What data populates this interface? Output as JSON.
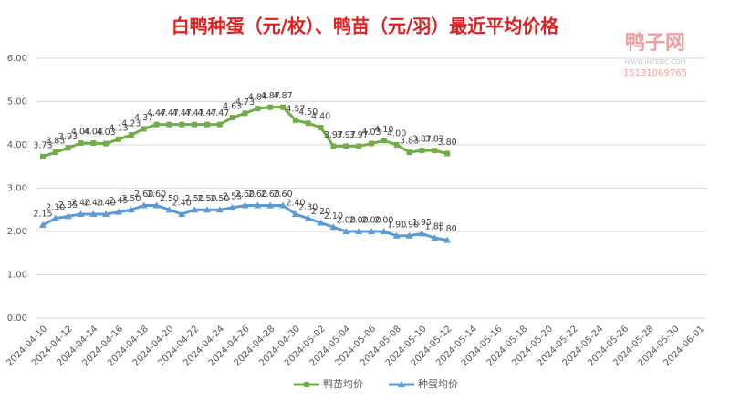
{
  "chart_data": {
    "type": "line",
    "title": "白鸭种蛋（元/枚）、鸭苗（元/羽）最近平均价格",
    "watermark": {
      "name": "鸭子网",
      "site": "WWW.INTEDC.COM",
      "phone": "15131069765"
    },
    "categories": [
      "2024-04-10",
      null,
      "2024-04-12",
      null,
      "2024-04-14",
      null,
      "2024-04-16",
      null,
      "2024-04-18",
      null,
      "2024-04-20",
      null,
      "2024-04-22",
      null,
      "2024-04-24",
      null,
      "2024-04-26",
      null,
      "2024-04-28",
      null,
      "2024-04-30",
      null,
      "2024-05-02",
      null,
      "2024-05-04",
      null,
      "2024-05-06",
      null,
      "2024-05-08",
      null,
      "2024-05-10",
      null,
      "2024-05-12",
      null,
      "2024-05-14",
      null,
      "2024-05-16",
      null,
      "2024-05-18",
      null,
      "2024-05-20",
      null,
      "2024-05-22",
      null,
      "2024-05-24",
      null,
      "2024-05-26",
      null,
      "2024-05-28",
      null,
      "2024-05-30",
      null,
      "2024-06-01"
    ],
    "series": [
      {
        "name": "鸭苗均价",
        "color": "#70ad47",
        "marker": "square",
        "values": [
          3.73,
          3.83,
          3.93,
          4.04,
          4.04,
          4.03,
          4.13,
          4.23,
          4.37,
          4.47,
          4.47,
          4.47,
          4.47,
          4.47,
          4.47,
          4.63,
          4.73,
          4.84,
          4.87,
          4.87,
          4.57,
          4.5,
          4.4,
          3.97,
          3.97,
          3.97,
          4.03,
          4.1,
          4.0,
          3.83,
          3.87,
          3.87,
          3.8,
          null,
          null,
          null,
          null,
          null,
          null,
          null,
          null,
          null,
          null,
          null,
          null,
          null,
          null,
          null,
          null,
          null,
          null,
          null,
          null
        ],
        "value_labels": [
          "3.73",
          "3.83",
          "3.93",
          "4.04",
          "4.04",
          "4.03",
          "4.13",
          "4.23",
          "4.37",
          "4.47",
          "4.47",
          "4.47",
          "4.47",
          "4.47",
          "4.47",
          "4.63",
          "4.73",
          "4.84",
          "4.87",
          "4.87",
          "4.57",
          "4.50",
          "4.40",
          "3.97",
          "3.97",
          "3.97",
          "4.03",
          "4.10",
          "4.00",
          "3.83",
          "3.87",
          "3.87",
          "3.80",
          null,
          null,
          null,
          null,
          null,
          null,
          null,
          null,
          null,
          null,
          null,
          null,
          null,
          null,
          null,
          null,
          null,
          null,
          null,
          null
        ]
      },
      {
        "name": "种蛋均价",
        "color": "#5b9bd5",
        "marker": "triangle",
        "values": [
          2.15,
          2.3,
          2.35,
          2.4,
          2.4,
          2.4,
          2.45,
          2.5,
          2.6,
          2.6,
          2.5,
          2.4,
          2.5,
          2.5,
          2.5,
          2.55,
          2.6,
          2.6,
          2.6,
          2.6,
          2.4,
          2.3,
          2.2,
          2.1,
          2.0,
          2.0,
          2.0,
          2.0,
          1.9,
          1.9,
          1.95,
          1.85,
          1.8,
          null,
          null,
          null,
          null,
          null,
          null,
          null,
          null,
          null,
          null,
          null,
          null,
          null,
          null,
          null,
          null,
          null,
          null,
          null,
          null
        ],
        "value_labels": [
          "2.15",
          "2.30",
          "2.35",
          "2.40",
          "2.40",
          "2.40",
          "2.45",
          "2.50",
          "2.60",
          "2.60",
          "2.50",
          "2.40",
          "2.50",
          "2.50",
          "2.50",
          "2.55",
          "2.60",
          "2.60",
          "2.60",
          "2.60",
          "2.40",
          "2.30",
          "2.20",
          "2.10",
          "2.00",
          "2.00",
          "2.00",
          "2.00",
          "1.90",
          "1.90",
          "1.95",
          "1.85",
          "1.80",
          null,
          null,
          null,
          null,
          null,
          null,
          null,
          null,
          null,
          null,
          null,
          null,
          null,
          null,
          null,
          null,
          null,
          null,
          null,
          null
        ]
      }
    ],
    "ylim": [
      0,
      6
    ],
    "yticks": [
      {
        "value": 0,
        "label": "0.00"
      },
      {
        "value": 1,
        "label": "1.00"
      },
      {
        "value": 2,
        "label": "2.00"
      },
      {
        "value": 3,
        "label": "3.00"
      },
      {
        "value": 4,
        "label": "4.00"
      },
      {
        "value": 5,
        "label": "5.00"
      },
      {
        "value": 6,
        "label": "6.00"
      }
    ],
    "grid": true,
    "legend": "bottom"
  }
}
